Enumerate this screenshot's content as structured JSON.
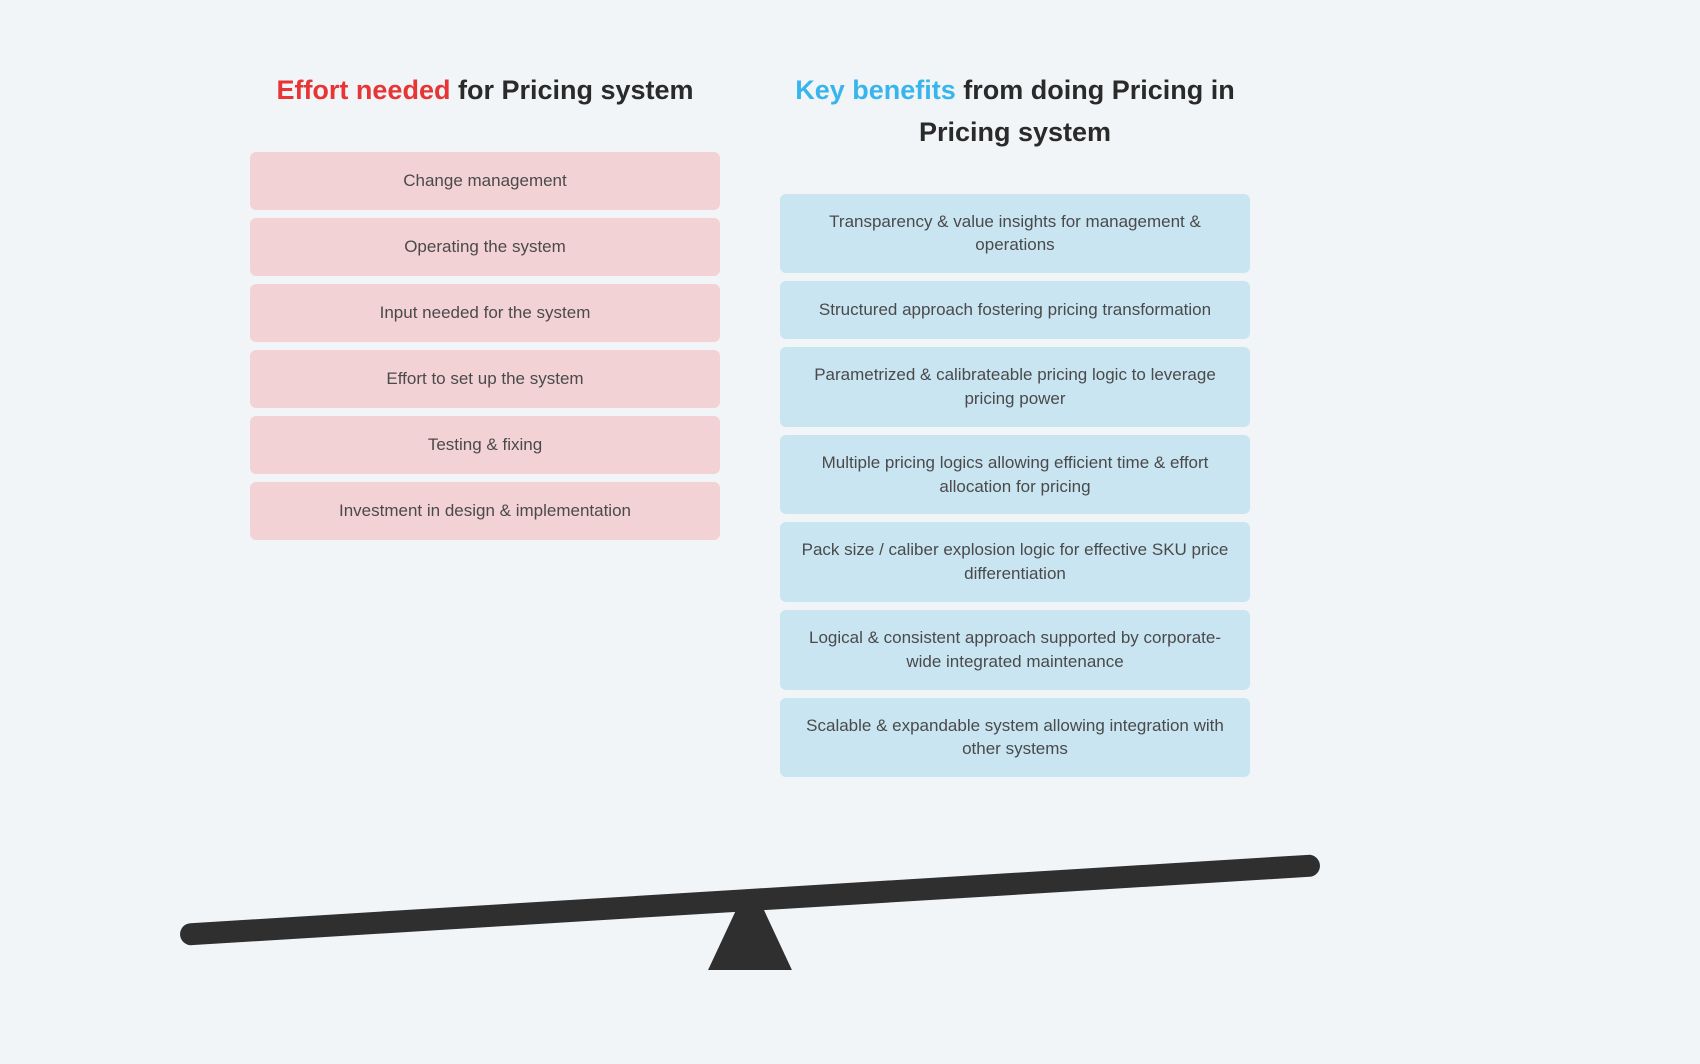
{
  "type": "infographic",
  "layout": "two-column-comparison-with-seesaw",
  "background_color": "#f2f5f7",
  "font_family": "Helvetica Neue, Arial, sans-serif",
  "heading_fontsize": 27,
  "pill_fontsize": 17,
  "pill_text_color": "#4a4a4a",
  "heading_text_color": "#2a2a2a",
  "left": {
    "heading_highlight": "Effort needed",
    "heading_highlight_color": "#e73434",
    "heading_rest": " for Pricing system",
    "pill_color": "#f3d2d6",
    "items": [
      "Change management",
      "Operating the system",
      "Input needed for the system",
      "Effort to set up the system",
      "Testing & fixing",
      "Investment in design & implementation"
    ]
  },
  "right": {
    "heading_highlight": "Key benefits",
    "heading_highlight_color": "#38b5ed",
    "heading_rest": " from doing Pricing in Pricing system",
    "pill_color": "#c9e5f2",
    "items": [
      "Transparency & value insights for management & operations",
      "Structured approach fostering pricing transformation",
      "Parametrized & calibrateable pricing logic to leverage pricing power",
      "Multiple pricing logics allowing efficient time & effort allocation for pricing",
      "Pack size / caliber explosion logic for effective SKU price differentiation",
      "Logical & consistent approach supported by corporate-wide integrated maintenance",
      "Scalable & expandable system allowing integration with other systems"
    ]
  },
  "seesaw": {
    "beam_color": "#2f2f2f",
    "fulcrum_color": "#2f2f2f",
    "tilt_angle_deg": -3.5,
    "beam_length": 1120,
    "beam_thickness": 22,
    "beam_border_radius": 11
  }
}
